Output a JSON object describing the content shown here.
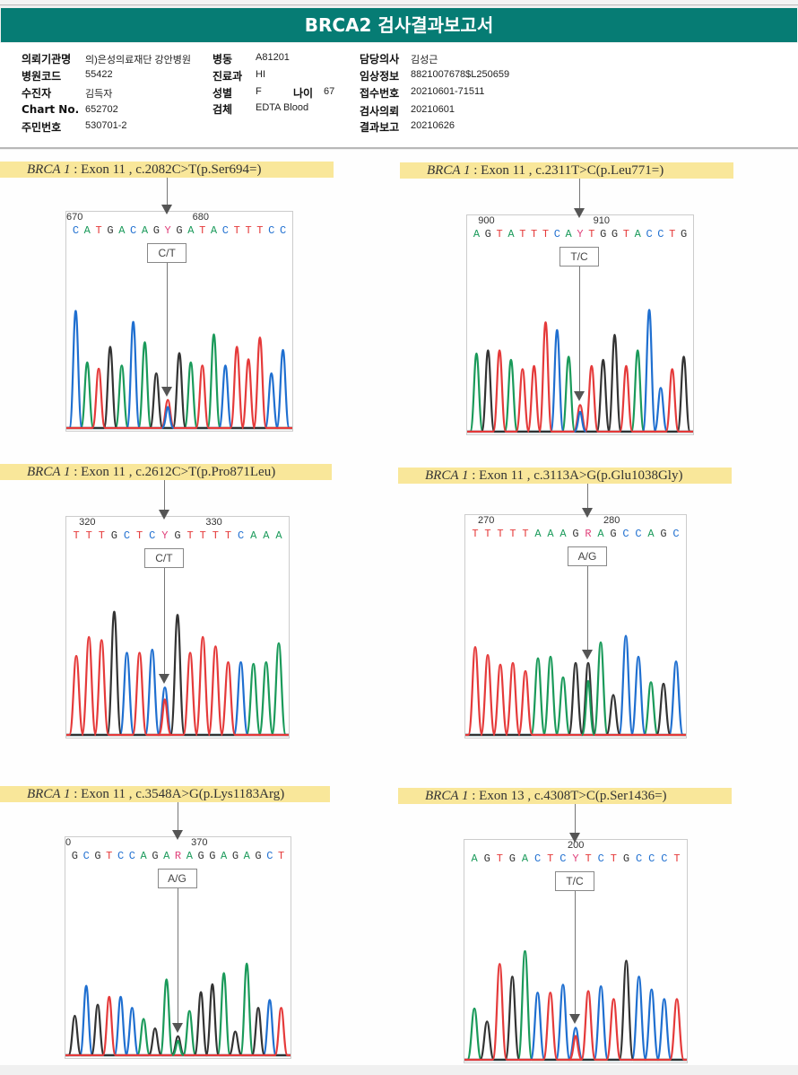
{
  "title": "BRCA2 검사결과보고서",
  "colors": {
    "title_bg": "#067c74",
    "A": "#1a9a5a",
    "C": "#1f6fd0",
    "G": "#333333",
    "T": "#e53a3a",
    "ambig": "#e0407a",
    "caption_bg": "#f9e79a"
  },
  "info": {
    "col1": [
      {
        "label": "의뢰기관명",
        "value": "의)은성의료재단 강안병원"
      },
      {
        "label": "병원코드",
        "value": "55422"
      },
      {
        "label": "수진자",
        "value": "김득자"
      },
      {
        "label": "Chart No.",
        "value": "652702"
      },
      {
        "label": "주민번호",
        "value": "530701-2"
      }
    ],
    "col2": [
      {
        "label": "병동",
        "value": "A81201"
      },
      {
        "label": "진료과",
        "value": "HI"
      },
      {
        "label": "성별",
        "value": "F"
      },
      {
        "label": "검체",
        "value": "EDTA Blood"
      }
    ],
    "age": {
      "label": "나이",
      "value": "67"
    },
    "col3": [
      {
        "label": "담당의사",
        "value": "김성근"
      },
      {
        "label": "임상정보",
        "value": "8821007678$L250659"
      },
      {
        "label": "접수번호",
        "value": "20210601-71511"
      },
      {
        "label": "검사의뢰",
        "value": "20210601"
      },
      {
        "label": "결과보고",
        "value": "20210626"
      }
    ]
  },
  "chart_data": [
    {
      "type": "chromatogram",
      "gene": "BRCA 1",
      "caption": " : Exon 11 , c.2082C>T(p.Ser694=)",
      "genotype": "C/T",
      "positions": [
        "670",
        "680"
      ],
      "sequence": "CATGACAGYGATACTTTCC",
      "variant_index": 8,
      "peaks": [
        [
          "C",
          0.75
        ],
        [
          "A",
          0.42
        ],
        [
          "T",
          0.38
        ],
        [
          "G",
          0.52
        ],
        [
          "A",
          0.4
        ],
        [
          "C",
          0.68
        ],
        [
          "A",
          0.55
        ],
        [
          "G",
          0.35
        ],
        [
          "T",
          0.18
        ],
        [
          "G",
          0.48
        ],
        [
          "A",
          0.42
        ],
        [
          "T",
          0.4
        ],
        [
          "A",
          0.6
        ],
        [
          "C",
          0.4
        ],
        [
          "T",
          0.52
        ],
        [
          "T",
          0.44
        ],
        [
          "T",
          0.58
        ],
        [
          "C",
          0.35
        ],
        [
          "C",
          0.5
        ]
      ]
    },
    {
      "type": "chromatogram",
      "gene": "BRCA 1",
      "caption": " : Exon 11 , c.2311T>C(p.Leu771=)",
      "genotype": "T/C",
      "positions": [
        "900",
        "910"
      ],
      "sequence": "AGTATTTCAYTGGTACCTG",
      "variant_index": 9,
      "peaks": [
        [
          "A",
          0.5
        ],
        [
          "G",
          0.52
        ],
        [
          "T",
          0.52
        ],
        [
          "A",
          0.46
        ],
        [
          "T",
          0.4
        ],
        [
          "T",
          0.42
        ],
        [
          "T",
          0.7
        ],
        [
          "C",
          0.65
        ],
        [
          "A",
          0.48
        ],
        [
          "T",
          0.17
        ],
        [
          "T",
          0.42
        ],
        [
          "G",
          0.46
        ],
        [
          "G",
          0.62
        ],
        [
          "T",
          0.42
        ],
        [
          "A",
          0.52
        ],
        [
          "C",
          0.78
        ],
        [
          "C",
          0.28
        ],
        [
          "T",
          0.4
        ],
        [
          "G",
          0.48
        ]
      ]
    },
    {
      "type": "chromatogram",
      "gene": "BRCA 1",
      "caption": " : Exon 11 , c.2612C>T(p.Pro871Leu)",
      "genotype": "C/T",
      "positions": [
        "320",
        "330"
      ],
      "sequence": "TTTGCTCYGTTTTCAAA",
      "variant_index": 7,
      "peaks": [
        [
          "T",
          0.5
        ],
        [
          "T",
          0.62
        ],
        [
          "T",
          0.6
        ],
        [
          "G",
          0.78
        ],
        [
          "C",
          0.52
        ],
        [
          "T",
          0.52
        ],
        [
          "C",
          0.54
        ],
        [
          "C",
          0.3
        ],
        [
          "G",
          0.76
        ],
        [
          "T",
          0.52
        ],
        [
          "T",
          0.62
        ],
        [
          "T",
          0.56
        ],
        [
          "T",
          0.46
        ],
        [
          "C",
          0.46
        ],
        [
          "A",
          0.45
        ],
        [
          "A",
          0.46
        ],
        [
          "A",
          0.58
        ]
      ]
    },
    {
      "type": "chromatogram",
      "gene": "BRCA 1",
      "caption": " : Exon 11 , c.3113A>G(p.Glu1038Gly)",
      "genotype": "A/G",
      "positions": [
        "270",
        "280"
      ],
      "sequence": "TTTTTAAAGRAGCCAGC",
      "variant_index": 9,
      "peaks": [
        [
          "T",
          0.55
        ],
        [
          "T",
          0.5
        ],
        [
          "T",
          0.44
        ],
        [
          "T",
          0.45
        ],
        [
          "T",
          0.4
        ],
        [
          "A",
          0.48
        ],
        [
          "A",
          0.49
        ],
        [
          "A",
          0.36
        ],
        [
          "G",
          0.45
        ],
        [
          "G",
          0.45
        ],
        [
          "A",
          0.58
        ],
        [
          "G",
          0.25
        ],
        [
          "C",
          0.62
        ],
        [
          "C",
          0.49
        ],
        [
          "A",
          0.33
        ],
        [
          "G",
          0.32
        ],
        [
          "C",
          0.46
        ]
      ]
    },
    {
      "type": "chromatogram",
      "gene": "BRCA 1",
      "caption": " : Exon 11 , c.3548A>G(p.Lys1183Arg)",
      "genotype": "A/G",
      "positions": [
        "0",
        "370"
      ],
      "sequence": "GCGTCCAGARAGGAGAGCT",
      "variant_index": 9,
      "peaks": [
        [
          "G",
          0.25
        ],
        [
          "C",
          0.44
        ],
        [
          "G",
          0.32
        ],
        [
          "T",
          0.37
        ],
        [
          "C",
          0.37
        ],
        [
          "C",
          0.3
        ],
        [
          "A",
          0.23
        ],
        [
          "G",
          0.17
        ],
        [
          "A",
          0.48
        ],
        [
          "G",
          0.12
        ],
        [
          "A",
          0.28
        ],
        [
          "G",
          0.4
        ],
        [
          "G",
          0.45
        ],
        [
          "A",
          0.52
        ],
        [
          "G",
          0.15
        ],
        [
          "A",
          0.58
        ],
        [
          "G",
          0.3
        ],
        [
          "C",
          0.35
        ],
        [
          "T",
          0.3
        ]
      ]
    },
    {
      "type": "chromatogram",
      "gene": "BRCA 1",
      "caption": " : Exon 13 , c.4308T>C(p.Ser1436=)",
      "genotype": "T/C",
      "positions": [
        "200"
      ],
      "sequence": "AGTGACTCYTCTGCCCT",
      "variant_index": 8,
      "peaks": [
        [
          "A",
          0.32
        ],
        [
          "G",
          0.24
        ],
        [
          "T",
          0.6
        ],
        [
          "G",
          0.52
        ],
        [
          "A",
          0.68
        ],
        [
          "C",
          0.42
        ],
        [
          "T",
          0.42
        ],
        [
          "C",
          0.47
        ],
        [
          "C",
          0.2
        ],
        [
          "T",
          0.43
        ],
        [
          "C",
          0.46
        ],
        [
          "T",
          0.38
        ],
        [
          "G",
          0.62
        ],
        [
          "C",
          0.52
        ],
        [
          "C",
          0.44
        ],
        [
          "C",
          0.38
        ],
        [
          "T",
          0.38
        ]
      ]
    }
  ]
}
